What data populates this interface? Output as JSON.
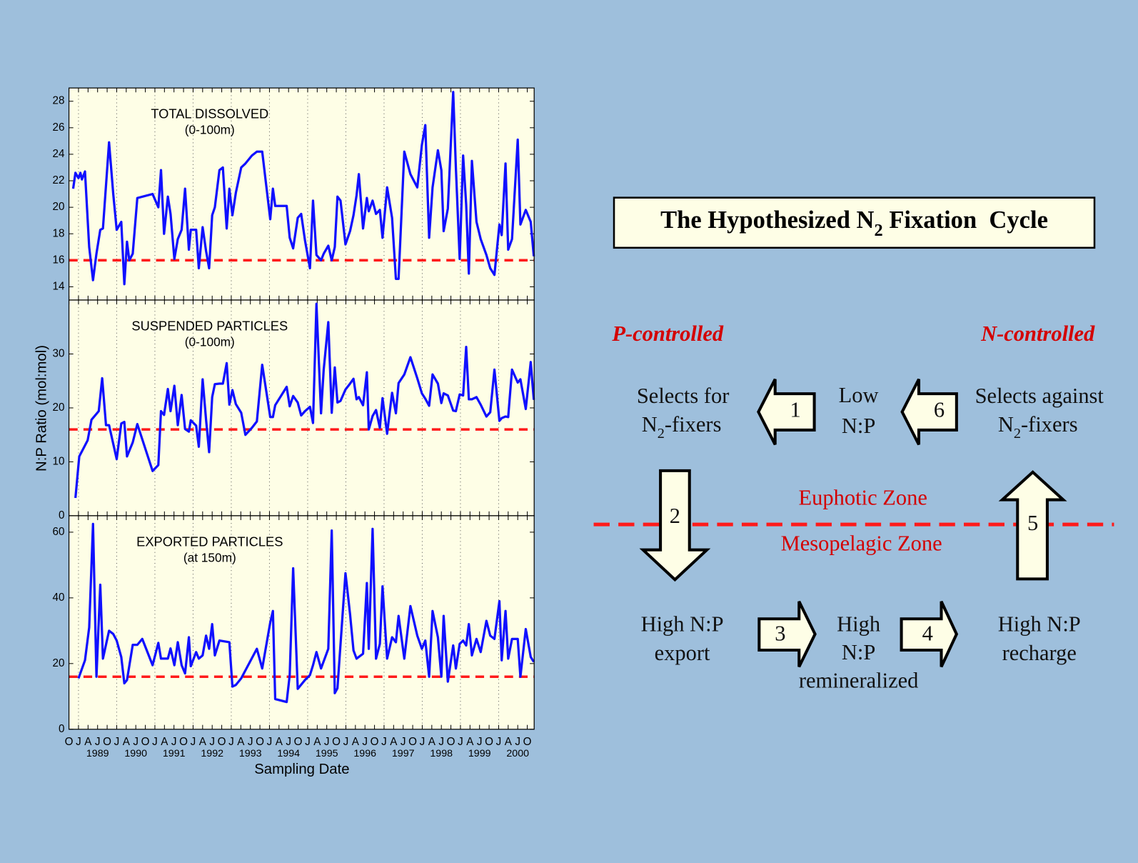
{
  "chart_data": [
    {
      "type": "line",
      "title": "TOTAL DISSOLVED",
      "subtitle": "(0-100m)",
      "color": "#1010ff",
      "background": "#fefee6",
      "grid": "x",
      "reference_line": {
        "value": 16,
        "color": "#ff1a1a"
      },
      "ylim": [
        13,
        29
      ],
      "yticks": [
        14,
        16,
        18,
        20,
        22,
        24,
        26,
        28
      ],
      "x": [
        1988.86,
        1988.92,
        1989.0,
        1989.05,
        1989.09,
        1989.17,
        1989.28,
        1989.38,
        1989.47,
        1989.57,
        1989.64,
        1989.8,
        1989.91,
        1990.0,
        1990.12,
        1990.2,
        1990.27,
        1990.33,
        1990.42,
        1990.54,
        1990.94,
        1991.09,
        1991.16,
        1991.24,
        1991.34,
        1991.41,
        1991.51,
        1991.6,
        1991.7,
        1991.79,
        1991.89,
        1991.94,
        1992.08,
        1992.15,
        1992.25,
        1992.34,
        1992.42,
        1992.5,
        1992.57,
        1992.69,
        1992.78,
        1992.88,
        1992.95,
        1993.03,
        1993.12,
        1993.26,
        1993.37,
        1993.54,
        1993.67,
        1993.81,
        1994.02,
        1994.09,
        1994.15,
        1994.45,
        1994.53,
        1994.62,
        1994.74,
        1994.83,
        1994.93,
        1995.06,
        1995.14,
        1995.23,
        1995.35,
        1995.42,
        1995.54,
        1995.63,
        1995.71,
        1995.78,
        1995.86,
        1995.99,
        1996.11,
        1996.2,
        1996.28,
        1996.34,
        1996.45,
        1996.55,
        1996.6,
        1996.7,
        1996.79,
        1996.89,
        1996.96,
        1997.08,
        1997.21,
        1997.31,
        1997.38,
        1997.53,
        1997.69,
        1997.87,
        1997.99,
        1998.08,
        1998.18,
        1998.27,
        1998.41,
        1998.5,
        1998.56,
        1998.67,
        1998.81,
        1998.88,
        1998.98,
        1999.07,
        1999.15,
        1999.22,
        1999.3,
        1999.42,
        1999.53,
        1999.68,
        1999.78,
        1999.89,
        2000.02,
        2000.08,
        2000.18,
        2000.25,
        2000.35,
        2000.5,
        2000.57,
        2000.71,
        2000.84,
        2000.92
      ],
      "values": [
        21.4,
        22.6,
        22.2,
        22.6,
        22.1,
        22.7,
        17,
        14.5,
        16.5,
        18.3,
        18.4,
        24.9,
        21,
        18.3,
        18.9,
        14.2,
        17.4,
        16,
        16.5,
        20.7,
        21,
        20,
        22.8,
        18,
        20.8,
        19.5,
        16.1,
        17.6,
        18.3,
        21.4,
        16.8,
        18.3,
        18.3,
        15.4,
        18.5,
        16.7,
        15.4,
        19.4,
        20,
        22.8,
        23,
        18.4,
        21.4,
        19.4,
        21.1,
        23,
        23.3,
        23.9,
        24.2,
        24.2,
        19.1,
        21.4,
        20.1,
        20.1,
        17.7,
        16.9,
        19.2,
        19.5,
        17.5,
        15.4,
        20.5,
        16.4,
        16,
        16.5,
        17.1,
        16,
        17,
        20.8,
        20.5,
        17.2,
        18.2,
        19.4,
        20.9,
        22.5,
        18.4,
        20.7,
        19.7,
        20.5,
        19.5,
        19.8,
        17.7,
        21.5,
        19.2,
        14.6,
        14.6,
        24.2,
        22.5,
        21.5,
        24.7,
        26.2,
        17.7,
        21.5,
        24.3,
        22.8,
        18.2,
        19.9,
        28.7,
        23,
        16.1,
        23.9,
        20.2,
        15,
        23.5,
        18.9,
        17.6,
        16.4,
        15.4,
        14.9,
        18.7,
        17.9,
        23.3,
        16.8,
        17.6,
        25.1,
        18.7,
        19.8,
        18.9,
        16.3
      ]
    },
    {
      "type": "line",
      "title": "SUSPENDED PARTICLES",
      "subtitle": "(0-100m)",
      "ylabel": "N:P Ratio (mol:mol)",
      "color": "#1010ff",
      "background": "#fefee6",
      "grid": "x",
      "reference_line": {
        "value": 16,
        "color": "#ff1a1a"
      },
      "ylim": [
        0,
        40
      ],
      "yticks": [
        0,
        10,
        20,
        30
      ],
      "x": [
        1988.92,
        1989.02,
        1989.13,
        1989.24,
        1989.34,
        1989.53,
        1989.62,
        1989.72,
        1989.8,
        1990.0,
        1990.12,
        1990.2,
        1990.27,
        1990.42,
        1990.54,
        1990.94,
        1991.09,
        1991.16,
        1991.24,
        1991.34,
        1991.41,
        1991.51,
        1991.6,
        1991.7,
        1991.79,
        1991.89,
        1991.94,
        1992.08,
        1992.15,
        1992.25,
        1992.34,
        1992.42,
        1992.5,
        1992.57,
        1992.69,
        1992.78,
        1992.88,
        1992.95,
        1993.03,
        1993.12,
        1993.26,
        1993.37,
        1993.54,
        1993.67,
        1993.81,
        1994.02,
        1994.09,
        1994.15,
        1994.45,
        1994.53,
        1994.62,
        1994.74,
        1994.83,
        1994.93,
        1995.06,
        1995.14,
        1995.23,
        1995.35,
        1995.42,
        1995.54,
        1995.63,
        1995.71,
        1995.78,
        1995.86,
        1995.99,
        1996.11,
        1996.2,
        1996.28,
        1996.34,
        1996.45,
        1996.55,
        1996.6,
        1996.7,
        1996.79,
        1996.89,
        1996.96,
        1997.08,
        1997.21,
        1997.31,
        1997.38,
        1997.53,
        1997.69,
        1997.87,
        1997.99,
        1998.08,
        1998.18,
        1998.27,
        1998.41,
        1998.5,
        1998.56,
        1998.67,
        1998.81,
        1998.88,
        1998.98,
        1999.07,
        1999.15,
        1999.22,
        1999.3,
        1999.42,
        1999.53,
        1999.68,
        1999.78,
        1999.89,
        2000.02,
        2000.08,
        2000.18,
        2000.25,
        2000.35,
        2000.5,
        2000.57,
        2000.71,
        2000.84,
        2000.92
      ],
      "values": [
        3.3,
        11,
        12.5,
        14,
        17.8,
        19.4,
        25.5,
        16.8,
        16.8,
        10.5,
        17.1,
        17.4,
        11,
        13.6,
        17,
        8.3,
        9.4,
        19.4,
        18.7,
        23.5,
        19.4,
        24.1,
        16.8,
        22.4,
        16.1,
        15.6,
        17.7,
        16.7,
        12.8,
        25.3,
        17.8,
        11.8,
        22,
        24.4,
        24.5,
        24.5,
        28.3,
        20.6,
        23.3,
        20.7,
        19.1,
        15,
        16.3,
        17.5,
        28,
        18.3,
        18.3,
        20.5,
        23.9,
        20.3,
        22.2,
        21,
        18.6,
        19.4,
        20.2,
        17.2,
        39.3,
        19,
        27.1,
        35.9,
        19.1,
        27.5,
        21,
        21.3,
        23.4,
        24.5,
        25.4,
        21.6,
        22,
        20.5,
        26.6,
        16,
        18.5,
        19.6,
        16.3,
        21.8,
        15.2,
        22.8,
        19,
        24.6,
        26.2,
        29.4,
        25.5,
        22.7,
        21.7,
        20.4,
        26.2,
        24.5,
        20.9,
        22.7,
        22.3,
        19.5,
        19.4,
        22.5,
        22.3,
        31.3,
        21.6,
        21.6,
        22,
        20.6,
        18.4,
        19.2,
        27.1,
        17.6,
        18.1,
        18.4,
        18.3,
        27.1,
        24.7,
        25.3,
        19.8,
        28.5,
        21.5
      ]
    },
    {
      "type": "line",
      "title": "EXPORTED PARTICLES",
      "subtitle": "(at 150m)",
      "xlabel": "Sampling Date",
      "color": "#1010ff",
      "background": "#fefee6",
      "grid": "x",
      "reference_line": {
        "value": 16,
        "color": "#ff1a1a"
      },
      "ylim": [
        0,
        65
      ],
      "yticks": [
        0,
        20,
        40,
        60
      ],
      "xlim": [
        1988.75,
        2000.93
      ],
      "xticks": [
        {
          "value": 1988.75,
          "label": "O"
        },
        {
          "value": 1989,
          "label": "J"
        },
        {
          "value": 1989.25,
          "label": "A"
        },
        {
          "value": 1989.5,
          "label": "J"
        },
        {
          "value": 1989.75,
          "label": "O"
        },
        {
          "value": 1990,
          "label": "J"
        },
        {
          "value": 1990.25,
          "label": "A"
        },
        {
          "value": 1990.5,
          "label": "J"
        },
        {
          "value": 1990.75,
          "label": "O"
        },
        {
          "value": 1991,
          "label": "J"
        },
        {
          "value": 1991.25,
          "label": "A"
        },
        {
          "value": 1991.5,
          "label": "J"
        },
        {
          "value": 1991.75,
          "label": "O"
        },
        {
          "value": 1992,
          "label": "J"
        },
        {
          "value": 1992.25,
          "label": "A"
        },
        {
          "value": 1992.5,
          "label": "J"
        },
        {
          "value": 1992.75,
          "label": "O"
        },
        {
          "value": 1993,
          "label": "J"
        },
        {
          "value": 1993.25,
          "label": "A"
        },
        {
          "value": 1993.5,
          "label": "J"
        },
        {
          "value": 1993.75,
          "label": "O"
        },
        {
          "value": 1994,
          "label": "J"
        },
        {
          "value": 1994.25,
          "label": "A"
        },
        {
          "value": 1994.5,
          "label": "J"
        },
        {
          "value": 1994.75,
          "label": "O"
        },
        {
          "value": 1995,
          "label": "J"
        },
        {
          "value": 1995.25,
          "label": "A"
        },
        {
          "value": 1995.5,
          "label": "J"
        },
        {
          "value": 1995.75,
          "label": "O"
        },
        {
          "value": 1996,
          "label": "J"
        },
        {
          "value": 1996.25,
          "label": "A"
        },
        {
          "value": 1996.5,
          "label": "J"
        },
        {
          "value": 1996.75,
          "label": "O"
        },
        {
          "value": 1997,
          "label": "J"
        },
        {
          "value": 1997.25,
          "label": "A"
        },
        {
          "value": 1997.5,
          "label": "J"
        },
        {
          "value": 1997.75,
          "label": "O"
        },
        {
          "value": 1998,
          "label": "J"
        },
        {
          "value": 1998.25,
          "label": "A"
        },
        {
          "value": 1998.5,
          "label": "J"
        },
        {
          "value": 1998.75,
          "label": "O"
        },
        {
          "value": 1999,
          "label": "J"
        },
        {
          "value": 1999.25,
          "label": "A"
        },
        {
          "value": 1999.5,
          "label": "J"
        },
        {
          "value": 1999.75,
          "label": "O"
        },
        {
          "value": 2000,
          "label": "J"
        },
        {
          "value": 2000.25,
          "label": "A"
        },
        {
          "value": 2000.5,
          "label": "J"
        },
        {
          "value": 2000.75,
          "label": "O"
        }
      ],
      "xticks_years": [
        {
          "value": 1989.5,
          "label": "1989"
        },
        {
          "value": 1990.5,
          "label": "1990"
        },
        {
          "value": 1991.5,
          "label": "1991"
        },
        {
          "value": 1992.5,
          "label": "1992"
        },
        {
          "value": 1993.5,
          "label": "1993"
        },
        {
          "value": 1994.5,
          "label": "1994"
        },
        {
          "value": 1995.5,
          "label": "1995"
        },
        {
          "value": 1996.5,
          "label": "1996"
        },
        {
          "value": 1997.5,
          "label": "1997"
        },
        {
          "value": 1998.5,
          "label": "1998"
        },
        {
          "value": 1999.5,
          "label": "1999"
        },
        {
          "value": 2000.5,
          "label": "2000"
        }
      ],
      "x": [
        1989.0,
        1989.17,
        1989.28,
        1989.38,
        1989.47,
        1989.57,
        1989.64,
        1989.8,
        1989.91,
        1990.0,
        1990.12,
        1990.2,
        1990.27,
        1990.42,
        1990.54,
        1990.67,
        1990.94,
        1991.09,
        1991.16,
        1991.24,
        1991.34,
        1991.41,
        1991.51,
        1991.6,
        1991.7,
        1991.79,
        1991.89,
        1991.94,
        1992.08,
        1992.15,
        1992.25,
        1992.34,
        1992.42,
        1992.5,
        1992.57,
        1992.69,
        1992.95,
        1993.03,
        1993.12,
        1993.26,
        1993.67,
        1993.81,
        1994.02,
        1994.09,
        1994.15,
        1994.45,
        1994.53,
        1994.62,
        1994.74,
        1994.93,
        1995.06,
        1995.14,
        1995.23,
        1995.35,
        1995.54,
        1995.63,
        1995.71,
        1995.78,
        1995.99,
        1996.11,
        1996.2,
        1996.28,
        1996.45,
        1996.55,
        1996.6,
        1996.7,
        1996.79,
        1996.89,
        1996.96,
        1997.08,
        1997.21,
        1997.31,
        1997.38,
        1997.53,
        1997.69,
        1997.87,
        1997.99,
        1998.08,
        1998.18,
        1998.27,
        1998.41,
        1998.5,
        1998.56,
        1998.67,
        1998.81,
        1998.88,
        1998.98,
        1999.07,
        1999.15,
        1999.22,
        1999.3,
        1999.42,
        1999.53,
        1999.68,
        1999.78,
        1999.89,
        2000.02,
        2000.08,
        2000.18,
        2000.25,
        2000.35,
        2000.5,
        2000.57,
        2000.71,
        2000.84,
        2000.92
      ],
      "values": [
        15.5,
        21,
        31,
        62.5,
        16,
        44,
        21.5,
        30,
        29,
        27,
        22,
        14,
        15,
        25.7,
        25.7,
        27.5,
        19.5,
        26.3,
        21.5,
        21.5,
        21.5,
        24.6,
        19.5,
        26.5,
        19.5,
        17,
        28,
        19.2,
        23.5,
        21.5,
        22.5,
        28.5,
        24.5,
        32,
        22.5,
        27,
        26.5,
        13,
        13.5,
        15.5,
        24.5,
        18.5,
        32.5,
        36,
        9.2,
        8.3,
        16.5,
        49,
        12.3,
        15,
        16.5,
        19.5,
        23.5,
        18.5,
        24.5,
        60.5,
        11,
        12.5,
        47.5,
        35,
        24,
        21.5,
        23,
        44.5,
        24.5,
        61,
        21.5,
        26,
        43.5,
        21.5,
        28,
        26.5,
        34.5,
        21.5,
        37.5,
        28.5,
        24.5,
        27,
        16,
        36,
        28,
        16,
        34.5,
        14.5,
        25.5,
        18.5,
        26,
        27,
        25.5,
        32,
        22.5,
        27.5,
        23.5,
        33,
        28.5,
        27.5,
        39,
        21,
        36,
        21.5,
        27.5,
        27.5,
        16,
        30.5,
        22,
        20.5
      ]
    }
  ],
  "diagram": {
    "title": {
      "text": "The Hypothesized N",
      "sub": "2",
      "tail": " Fixation  Cycle"
    },
    "left_label": "P-controlled",
    "right_label": "N-controlled",
    "nodes": [
      {
        "lines": [
          "Selects for",
          {
            "text": "N",
            "sub": "2",
            "tail": "-fixers"
          }
        ]
      },
      {
        "lines": [
          "Low",
          "N:P"
        ]
      },
      {
        "lines": [
          "Selects against",
          {
            "text": "N",
            "sub": "2",
            "tail": "-fixers"
          }
        ]
      },
      {
        "lines": [
          "High N:P",
          "export"
        ]
      },
      {
        "lines": [
          "High",
          "N:P",
          "remineralized"
        ]
      },
      {
        "lines": [
          "High N:P",
          "recharge"
        ]
      }
    ],
    "arrows": [
      "1",
      "2",
      "3",
      "4",
      "5",
      "6"
    ],
    "zones": [
      "Euphotic Zone",
      "Mesopelagic Zone"
    ]
  }
}
